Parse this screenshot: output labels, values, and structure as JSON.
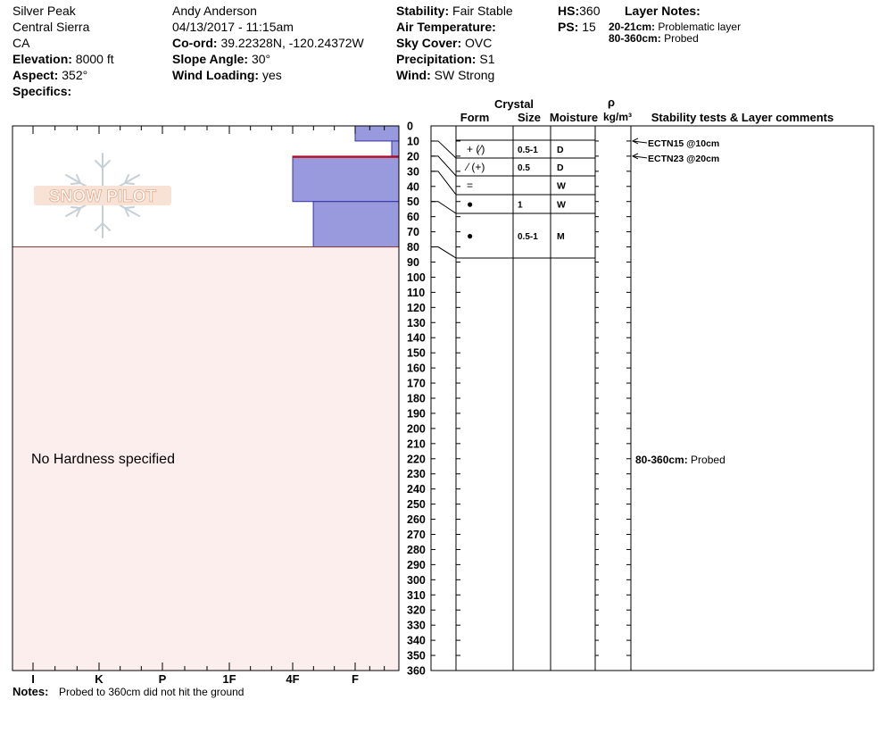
{
  "header": {
    "location": "Silver Peak",
    "range": "Central Sierra",
    "state": "CA",
    "elevation_label": "Elevation:",
    "elevation_value": "8000 ft",
    "aspect_label": "Aspect:",
    "aspect_value": "352°",
    "specifics_label": "Specifics:",
    "observer": "Andy Anderson",
    "datetime": "04/13/2017 - 11:15am",
    "coord_label": "Co-ord:",
    "coord_value": "39.22328N, -120.24372W",
    "slope_label": "Slope Angle:",
    "slope_value": "30°",
    "wind_loading_label": "Wind Loading:",
    "wind_loading_value": "yes",
    "stability_label": "Stability:",
    "stability_value": "Fair Stable",
    "air_temp_label": "Air Temperature:",
    "air_temp_value": "",
    "sky_label": "Sky Cover:",
    "sky_value": "OVC",
    "precip_label": "Precipitation:",
    "precip_value": "S1",
    "wind_label": "Wind:",
    "wind_value": "SW Strong",
    "hs_label": "HS:",
    "hs_value": "360",
    "ps_label": "PS:",
    "ps_value": "15",
    "layer_notes_title": "Layer Notes:",
    "layer_notes": [
      {
        "range": "20-21cm:",
        "text": "Problematic layer"
      },
      {
        "range": "80-360cm:",
        "text": "Probed"
      }
    ]
  },
  "logo_text": "SNOW PILOT",
  "no_hardness_text": "No Hardness specified",
  "notes_label": "Notes:",
  "notes_text": "Probed to 360cm did not hit the ground",
  "columns": {
    "crystal": "Crystal",
    "form": "Form",
    "size": "Size",
    "moisture": "Moisture",
    "rho": "ρ",
    "density_unit": "kg/m³",
    "stability": "Stability tests & Layer comments"
  },
  "colors": {
    "hardness_fill": "#9999dd",
    "hardness_stroke": "#3333aa",
    "probed_fill": "#fdeeee",
    "problem_layer": "#cc0000",
    "grid": "#000000"
  },
  "chart_data": {
    "type": "snow-profile",
    "depth_unit": "cm",
    "depth_range": [
      0,
      360
    ],
    "depth_ticks": [
      0,
      10,
      20,
      30,
      40,
      50,
      60,
      70,
      80,
      90,
      100,
      110,
      120,
      130,
      140,
      150,
      160,
      170,
      180,
      190,
      200,
      210,
      220,
      230,
      240,
      250,
      260,
      270,
      280,
      290,
      300,
      310,
      320,
      330,
      340,
      350,
      360
    ],
    "hardness_scale": [
      "I",
      "K",
      "P",
      "1F",
      "4F",
      "F"
    ],
    "hardness_profile": [
      {
        "top": 0,
        "bottom": 10,
        "hardness": "F"
      },
      {
        "top": 10,
        "bottom": 20,
        "hardness": "F+"
      },
      {
        "top": 20,
        "bottom": 50,
        "hardness": "4F"
      },
      {
        "top": 50,
        "bottom": 80,
        "hardness": "4F+"
      }
    ],
    "problem_layer": {
      "top": 20,
      "bottom": 21
    },
    "probed_range": [
      80,
      360
    ],
    "layers": [
      {
        "top": 0,
        "bottom": 10,
        "form": "+ (⁄)",
        "size": "0.5-1",
        "moisture": "D"
      },
      {
        "top": 10,
        "bottom": 20,
        "form": "⁄ (+)",
        "size": "0.5",
        "moisture": "D"
      },
      {
        "top": 20,
        "bottom": 30,
        "form": "=",
        "size": "",
        "moisture": "W"
      },
      {
        "top": 30,
        "bottom": 50,
        "form": "●",
        "size": "1",
        "moisture": "W"
      },
      {
        "top": 50,
        "bottom": 80,
        "form": "●",
        "size": "0.5-1",
        "moisture": "M"
      }
    ],
    "stability_tests": [
      {
        "depth": 10,
        "label": "ECTN15 @10cm"
      },
      {
        "depth": 20,
        "label": "ECTN23 @20cm"
      }
    ],
    "layer_comments": [
      {
        "depth": 220,
        "range": "80-360cm:",
        "text": "Probed"
      }
    ]
  }
}
